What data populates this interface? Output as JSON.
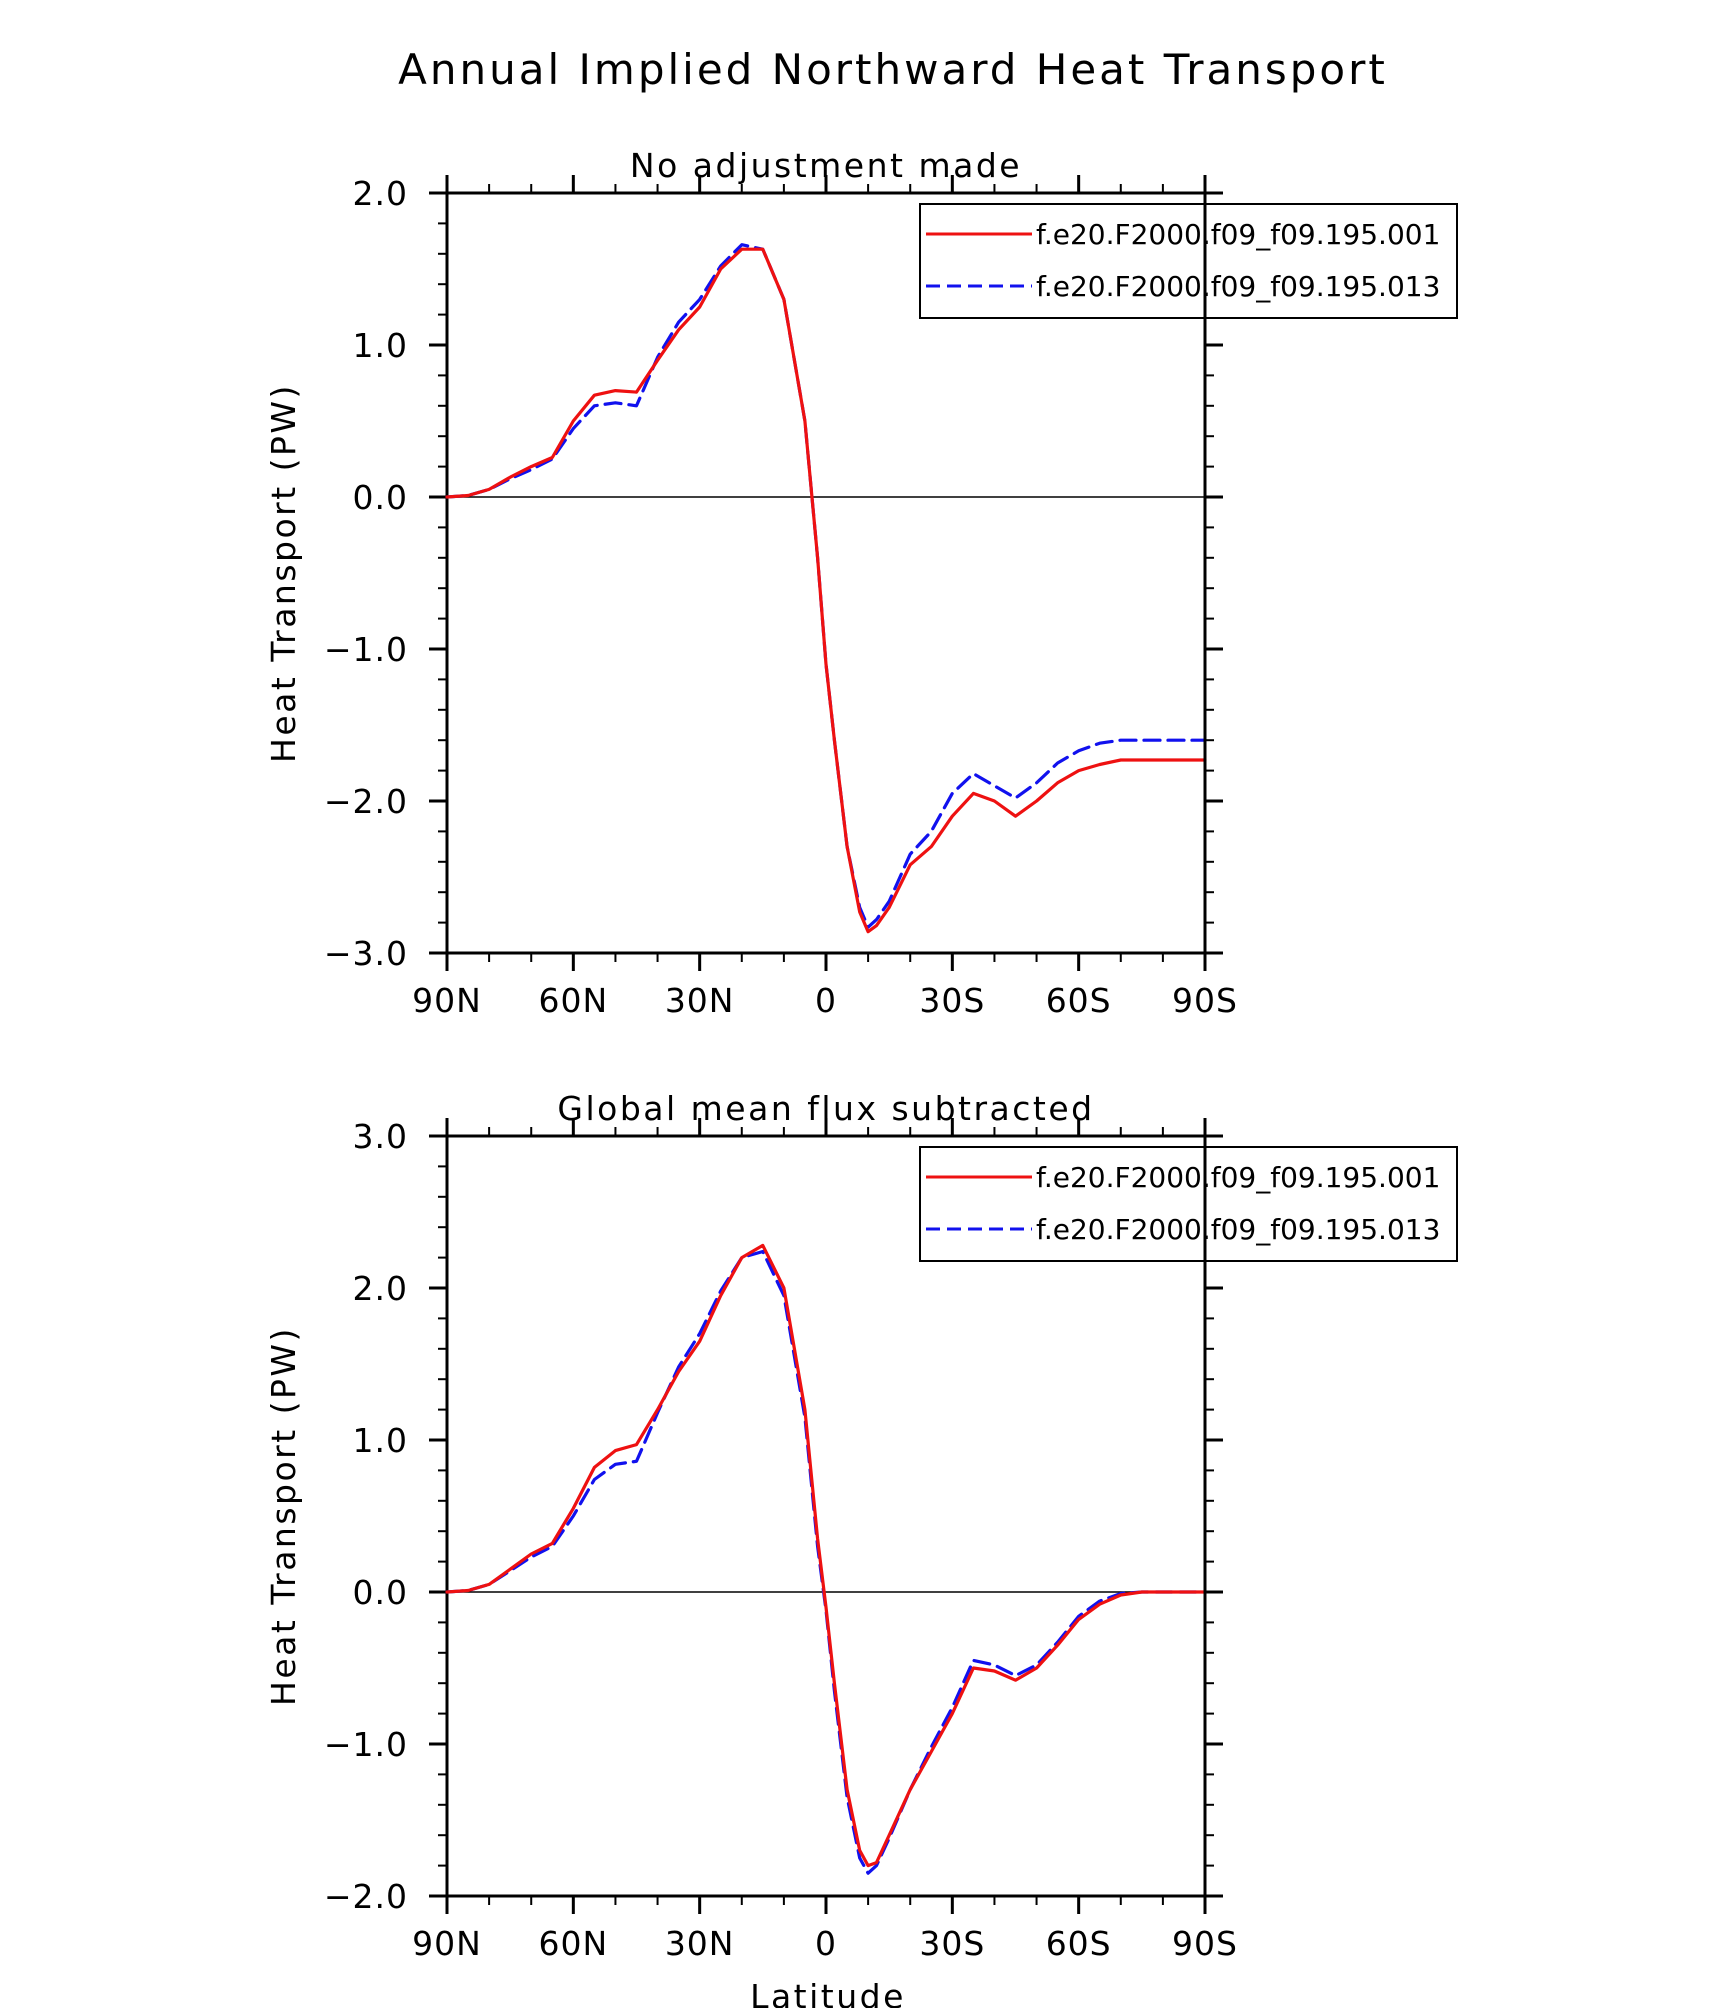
{
  "title": "Annual Implied Northward Heat Transport",
  "xlabel": "Latitude",
  "colors": {
    "series1": "#ee1111",
    "series2": "#1111ee",
    "axis": "#000000"
  },
  "chart_data": [
    {
      "type": "line",
      "title": "No adjustment made",
      "xlabel": "",
      "ylabel": "Heat Transport (PW)",
      "xlim": [
        90,
        -90
      ],
      "ylim": [
        -3.0,
        2.0
      ],
      "xticks": [
        {
          "value": 90,
          "label": "90N"
        },
        {
          "value": 60,
          "label": "60N"
        },
        {
          "value": 30,
          "label": "30N"
        },
        {
          "value": 0,
          "label": "0"
        },
        {
          "value": -30,
          "label": "30S"
        },
        {
          "value": -60,
          "label": "60S"
        },
        {
          "value": -90,
          "label": "90S"
        }
      ],
      "yticks": [
        {
          "value": 2.0,
          "label": "2.0"
        },
        {
          "value": 1.0,
          "label": "1.0"
        },
        {
          "value": 0.0,
          "label": "0.0"
        },
        {
          "value": -1.0,
          "label": "−1.0"
        },
        {
          "value": -2.0,
          "label": "−2.0"
        },
        {
          "value": -3.0,
          "label": "−3.0"
        }
      ],
      "legend_position": "top-right",
      "series": [
        {
          "name": "f.e20.F2000.f09_f09.195.001",
          "style": "solid",
          "x": [
            90,
            85,
            80,
            75,
            70,
            65,
            60,
            55,
            50,
            45,
            40,
            35,
            30,
            25,
            20,
            15,
            10,
            5,
            2,
            0,
            -2,
            -5,
            -8,
            -10,
            -12,
            -15,
            -20,
            -25,
            -30,
            -35,
            -40,
            -45,
            -50,
            -55,
            -60,
            -65,
            -70,
            -75,
            -80,
            -85,
            -90
          ],
          "y": [
            0.0,
            0.01,
            0.05,
            0.13,
            0.2,
            0.26,
            0.5,
            0.67,
            0.7,
            0.69,
            0.9,
            1.1,
            1.25,
            1.5,
            1.63,
            1.63,
            1.3,
            0.5,
            -0.4,
            -1.1,
            -1.6,
            -2.3,
            -2.73,
            -2.86,
            -2.82,
            -2.7,
            -2.42,
            -2.3,
            -2.1,
            -1.95,
            -2.0,
            -2.1,
            -2.0,
            -1.88,
            -1.8,
            -1.76,
            -1.73,
            -1.73,
            -1.73,
            -1.73,
            -1.73
          ]
        },
        {
          "name": "f.e20.F2000.f09_f09.195.013",
          "style": "dashed",
          "x": [
            90,
            85,
            80,
            75,
            70,
            65,
            60,
            55,
            50,
            45,
            40,
            35,
            30,
            25,
            20,
            15,
            10,
            5,
            2,
            0,
            -2,
            -5,
            -8,
            -10,
            -12,
            -15,
            -20,
            -25,
            -30,
            -35,
            -40,
            -45,
            -50,
            -55,
            -60,
            -65,
            -70,
            -75,
            -80,
            -85,
            -90
          ],
          "y": [
            0.0,
            0.01,
            0.05,
            0.12,
            0.18,
            0.25,
            0.45,
            0.6,
            0.62,
            0.6,
            0.92,
            1.15,
            1.3,
            1.52,
            1.66,
            1.63,
            1.3,
            0.5,
            -0.4,
            -1.1,
            -1.6,
            -2.3,
            -2.7,
            -2.83,
            -2.78,
            -2.66,
            -2.35,
            -2.2,
            -1.95,
            -1.82,
            -1.9,
            -1.98,
            -1.88,
            -1.75,
            -1.67,
            -1.62,
            -1.6,
            -1.6,
            -1.6,
            -1.6,
            -1.6
          ]
        }
      ]
    },
    {
      "type": "line",
      "title": "Global mean flux subtracted",
      "xlabel": "Latitude",
      "ylabel": "Heat Transport (PW)",
      "xlim": [
        90,
        -90
      ],
      "ylim": [
        -2.0,
        3.0
      ],
      "xticks": [
        {
          "value": 90,
          "label": "90N"
        },
        {
          "value": 60,
          "label": "60N"
        },
        {
          "value": 30,
          "label": "30N"
        },
        {
          "value": 0,
          "label": "0"
        },
        {
          "value": -30,
          "label": "30S"
        },
        {
          "value": -60,
          "label": "60S"
        },
        {
          "value": -90,
          "label": "90S"
        }
      ],
      "yticks": [
        {
          "value": 3.0,
          "label": "3.0"
        },
        {
          "value": 2.0,
          "label": "2.0"
        },
        {
          "value": 1.0,
          "label": "1.0"
        },
        {
          "value": 0.0,
          "label": "0.0"
        },
        {
          "value": -1.0,
          "label": "−1.0"
        },
        {
          "value": -2.0,
          "label": "−2.0"
        }
      ],
      "legend_position": "top-right",
      "series": [
        {
          "name": "f.e20.F2000.f09_f09.195.001",
          "style": "solid",
          "x": [
            90,
            85,
            80,
            75,
            70,
            65,
            60,
            55,
            50,
            45,
            40,
            35,
            30,
            25,
            20,
            15,
            10,
            5,
            2,
            0,
            -2,
            -5,
            -8,
            -10,
            -12,
            -15,
            -20,
            -25,
            -30,
            -35,
            -40,
            -45,
            -50,
            -55,
            -60,
            -65,
            -70,
            -75,
            -80,
            -85,
            -90
          ],
          "y": [
            0.0,
            0.01,
            0.05,
            0.15,
            0.25,
            0.32,
            0.55,
            0.82,
            0.93,
            0.97,
            1.2,
            1.45,
            1.65,
            1.95,
            2.2,
            2.28,
            2.0,
            1.2,
            0.35,
            -0.1,
            -0.6,
            -1.3,
            -1.7,
            -1.8,
            -1.78,
            -1.6,
            -1.3,
            -1.05,
            -0.8,
            -0.5,
            -0.52,
            -0.58,
            -0.5,
            -0.35,
            -0.18,
            -0.08,
            -0.02,
            0.0,
            0.0,
            0.0,
            0.0
          ]
        },
        {
          "name": "f.e20.F2000.f09_f09.195.013",
          "style": "dashed",
          "x": [
            90,
            85,
            80,
            75,
            70,
            65,
            60,
            55,
            50,
            45,
            40,
            35,
            30,
            25,
            20,
            15,
            10,
            5,
            2,
            0,
            -2,
            -5,
            -8,
            -10,
            -12,
            -15,
            -20,
            -25,
            -30,
            -35,
            -40,
            -45,
            -50,
            -55,
            -60,
            -65,
            -70,
            -75,
            -80,
            -85,
            -90
          ],
          "y": [
            0.0,
            0.01,
            0.05,
            0.14,
            0.23,
            0.3,
            0.5,
            0.74,
            0.84,
            0.86,
            1.18,
            1.48,
            1.7,
            1.98,
            2.2,
            2.24,
            1.95,
            1.15,
            0.3,
            -0.12,
            -0.65,
            -1.35,
            -1.75,
            -1.85,
            -1.8,
            -1.62,
            -1.3,
            -1.02,
            -0.76,
            -0.45,
            -0.48,
            -0.55,
            -0.48,
            -0.33,
            -0.16,
            -0.06,
            -0.01,
            0.0,
            0.0,
            0.0,
            0.0
          ]
        }
      ]
    }
  ]
}
